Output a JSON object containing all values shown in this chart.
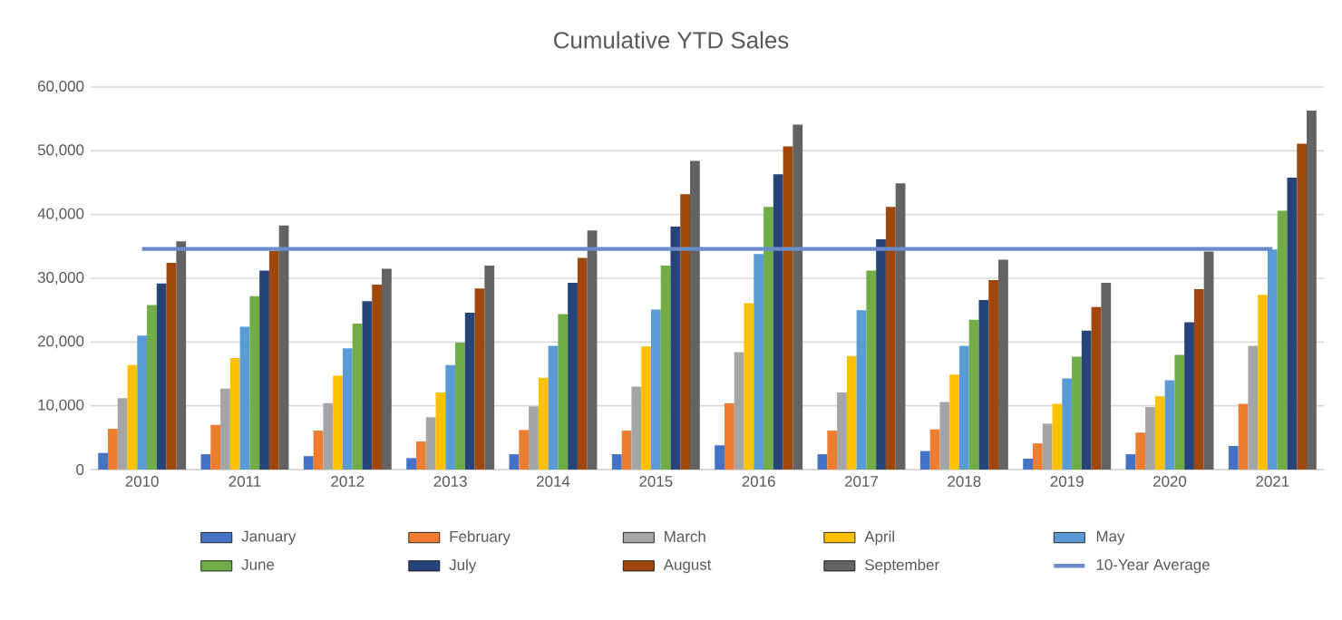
{
  "chart_data": {
    "type": "bar",
    "title": "Cumulative YTD Sales",
    "categories": [
      "2010",
      "2011",
      "2012",
      "2013",
      "2014",
      "2015",
      "2016",
      "2017",
      "2018",
      "2019",
      "2020",
      "2021"
    ],
    "series": [
      {
        "name": "January",
        "color": "#4472c4",
        "values": [
          2600,
          2400,
          2100,
          1800,
          2400,
          2400,
          3800,
          2400,
          2900,
          1700,
          2400,
          3700
        ]
      },
      {
        "name": "February",
        "color": "#ed7d31",
        "values": [
          6400,
          7000,
          6100,
          4400,
          6200,
          6100,
          10400,
          6100,
          6300,
          4100,
          5800,
          10300
        ]
      },
      {
        "name": "March",
        "color": "#a5a5a5",
        "values": [
          11200,
          12700,
          10400,
          8200,
          9900,
          13000,
          18400,
          12100,
          10600,
          7200,
          9800,
          19400
        ]
      },
      {
        "name": "April",
        "color": "#ffc000",
        "values": [
          16400,
          17500,
          14700,
          12100,
          14400,
          19300,
          26100,
          17800,
          14900,
          10300,
          11500,
          27400
        ]
      },
      {
        "name": "May",
        "color": "#5b9bd5",
        "values": [
          21000,
          22400,
          19000,
          16400,
          19400,
          25100,
          33800,
          25000,
          19400,
          14300,
          14000,
          34500
        ]
      },
      {
        "name": "June",
        "color": "#70ad47",
        "values": [
          25800,
          27200,
          22900,
          19900,
          24400,
          32000,
          41200,
          31200,
          23500,
          17700,
          18000,
          40600
        ]
      },
      {
        "name": "July",
        "color": "#264478",
        "values": [
          29200,
          31200,
          26400,
          24600,
          29300,
          38100,
          46300,
          36100,
          26600,
          21800,
          23100,
          45800
        ]
      },
      {
        "name": "August",
        "color": "#9e480e",
        "values": [
          32400,
          34300,
          29000,
          28400,
          33200,
          43200,
          50700,
          41200,
          29700,
          25500,
          28300,
          51100
        ]
      },
      {
        "name": "September",
        "color": "#636363",
        "values": [
          35800,
          38300,
          31500,
          32000,
          37500,
          48400,
          54100,
          44900,
          32900,
          29300,
          34200,
          56300
        ]
      },
      {
        "name": "10-Year Average",
        "type": "line",
        "color": "#6a8dc9",
        "values": [
          34600,
          34600,
          34600,
          34600,
          34600,
          34600,
          34600,
          34600,
          34600,
          34600,
          34600,
          34600
        ]
      }
    ],
    "ylim": [
      0,
      60000
    ],
    "yticks": [
      0,
      {
        "value": 10000,
        "label": "10,000"
      },
      {
        "value": 20000,
        "label": "20,000"
      },
      {
        "value": 30000,
        "label": "30,000"
      },
      {
        "value": 40000,
        "label": "40,000"
      },
      {
        "value": 50000,
        "label": "50,000"
      },
      {
        "value": 60000,
        "label": "60,000"
      }
    ],
    "grid": "y",
    "legend": "bottom"
  }
}
